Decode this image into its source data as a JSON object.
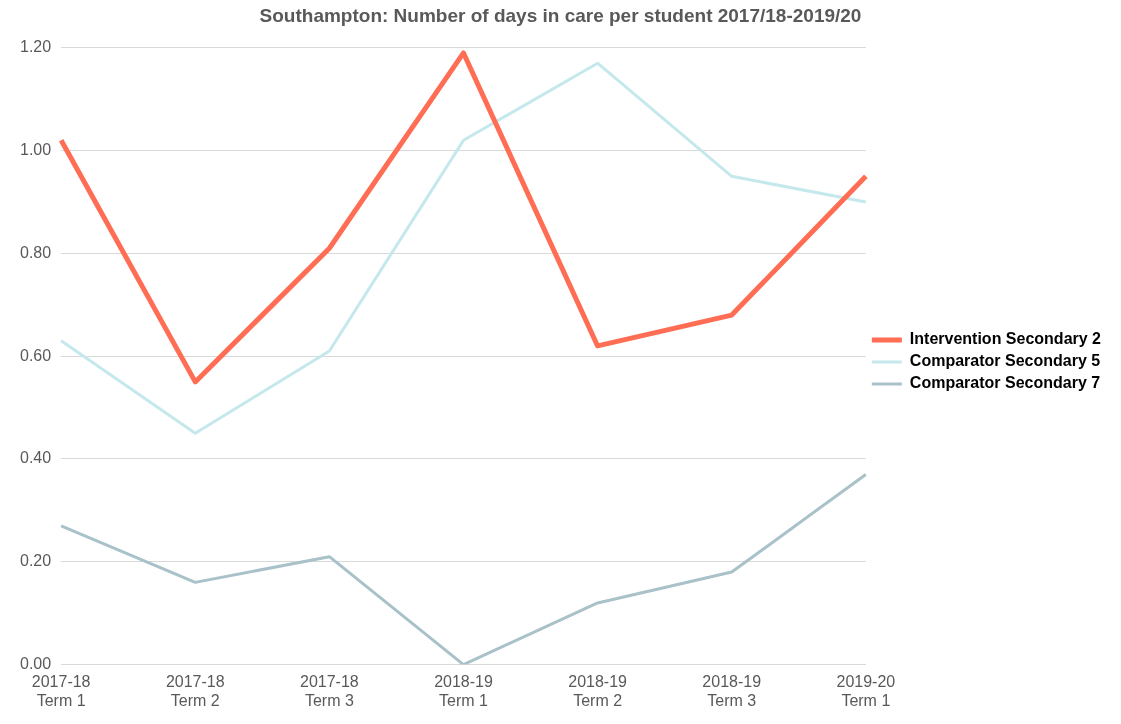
{
  "chart_data": {
    "type": "line",
    "title": "Southampton: Number of days in care per student 2017/18-2019/20",
    "categories": [
      "2017-18\nTerm 1",
      "2017-18\nTerm 2",
      "2017-18\nTerm 3",
      "2018-19\nTerm 1",
      "2018-19\nTerm 2",
      "2018-19\nTerm 3",
      "2019-20\nTerm 1"
    ],
    "series": [
      {
        "name": "Intervention Secondary 2",
        "color": "#ff6e54",
        "values": [
          1.02,
          0.55,
          0.81,
          1.19,
          0.62,
          0.68,
          0.95
        ]
      },
      {
        "name": "Comparator Secondary 5",
        "color": "#c5e8ec",
        "values": [
          0.63,
          0.45,
          0.61,
          1.02,
          1.17,
          0.95,
          0.9
        ]
      },
      {
        "name": "Comparator Secondary 7",
        "color": "#a9c1c8",
        "values": [
          0.27,
          0.16,
          0.21,
          0.0,
          0.12,
          0.18,
          0.37
        ]
      }
    ],
    "ylim": [
      0,
      1.2
    ],
    "yticks": [
      {
        "value": 0,
        "label": "0.00"
      },
      {
        "value": 0.2,
        "label": "0.20"
      },
      {
        "value": 0.4,
        "label": "0.40"
      },
      {
        "value": 0.6,
        "label": "0.60"
      },
      {
        "value": 0.8,
        "label": "0.80"
      },
      {
        "value": 1,
        "label": "1.00"
      },
      {
        "value": 1.2,
        "label": "1.20"
      }
    ],
    "grid": "y",
    "legend": "right",
    "marker": "none",
    "line_style": "solid"
  }
}
